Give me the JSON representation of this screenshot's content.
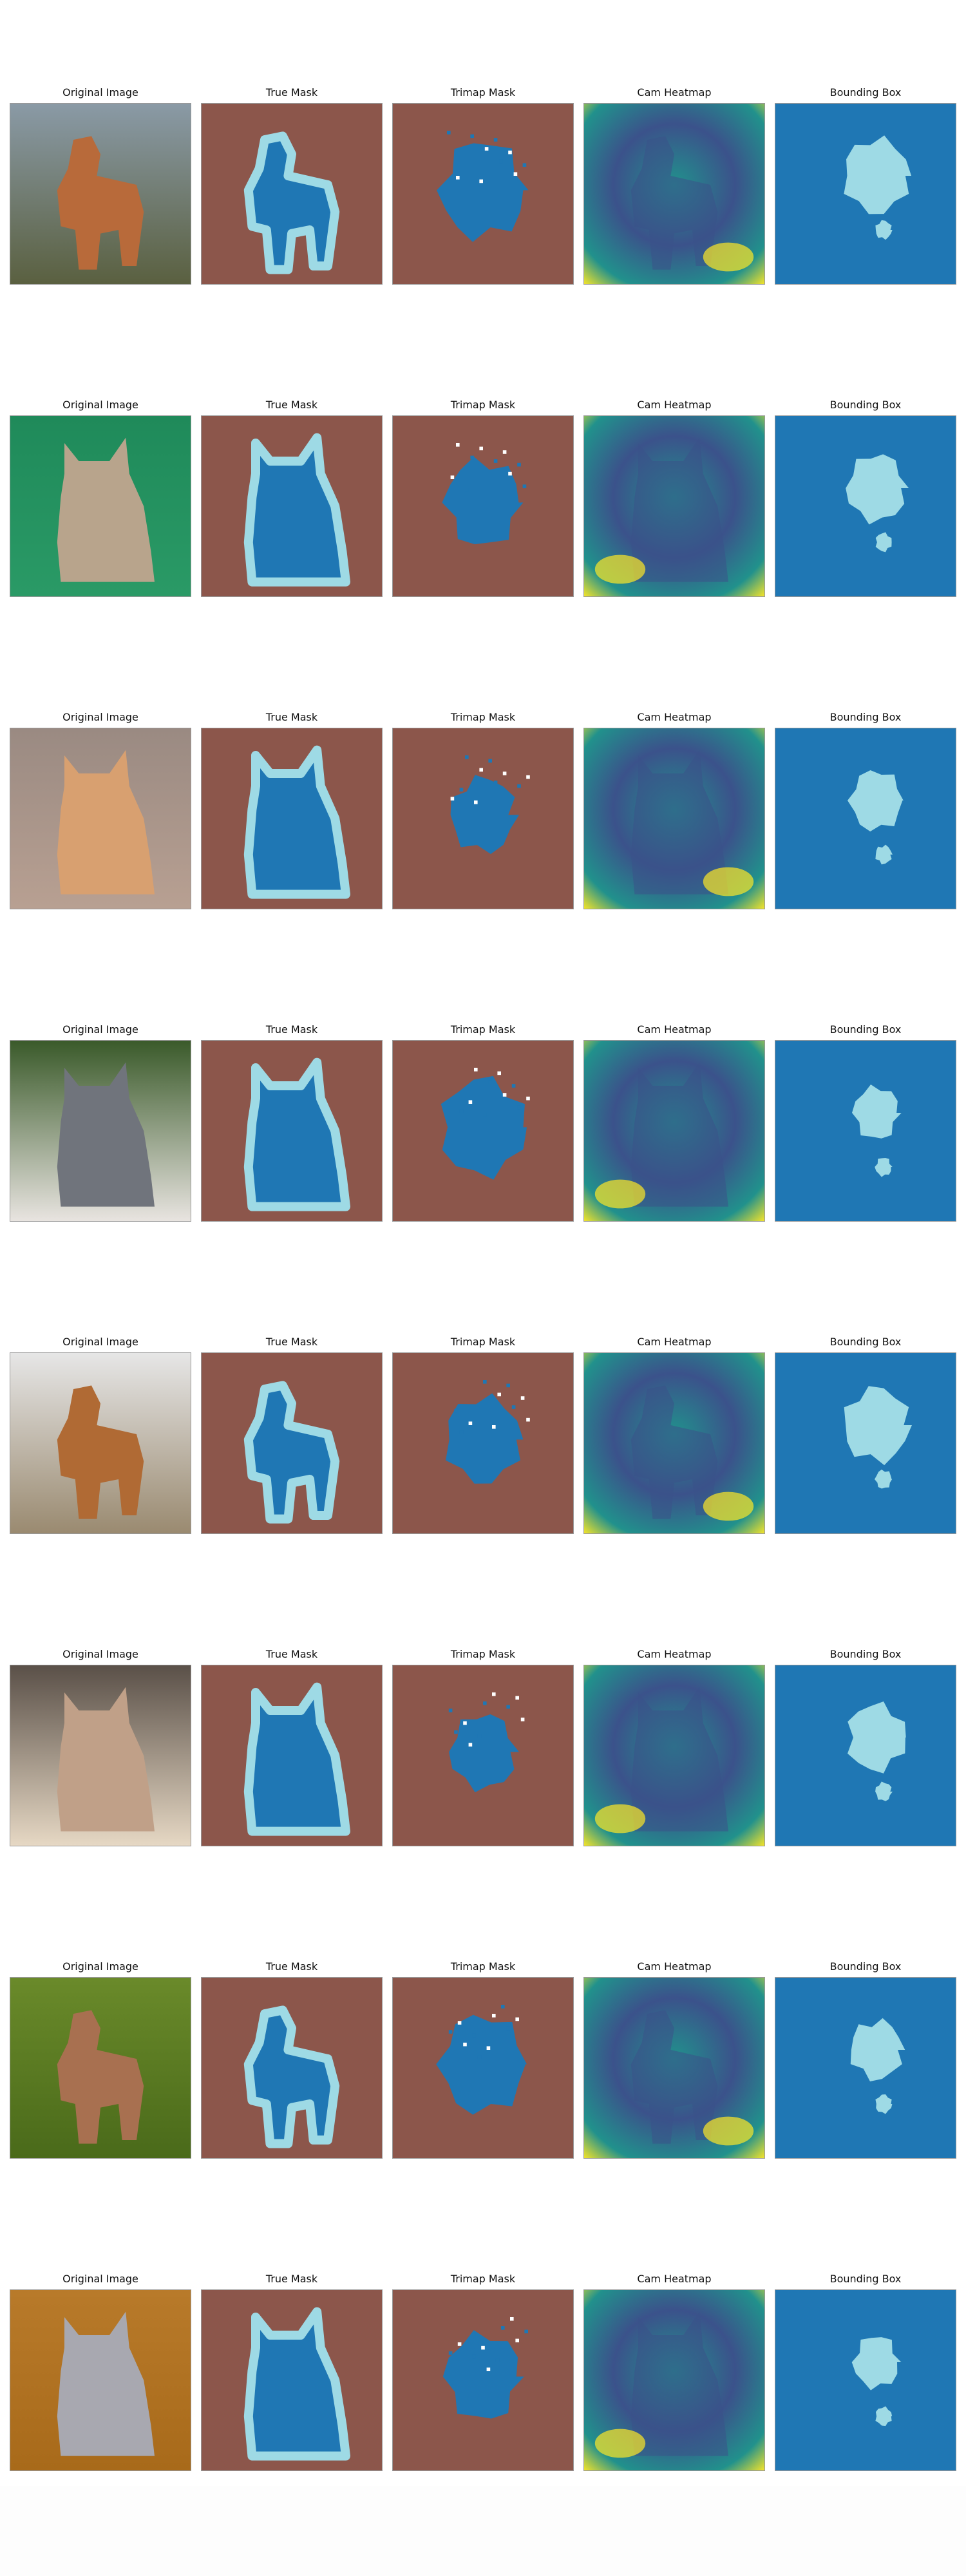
{
  "figure": {
    "panel_titles": [
      "Original Image",
      "True Mask",
      "Trimap Mask",
      "Cam Heatmap",
      "Bounding Box"
    ],
    "rows": [
      {
        "subject": "dog",
        "photo_colors": [
          "#8a9aa6",
          "#5a6040",
          "#b86a3a"
        ]
      },
      {
        "subject": "cat",
        "photo_colors": [
          "#1f8a5a",
          "#2a9a66",
          "#b8a48c"
        ]
      },
      {
        "subject": "cat",
        "photo_colors": [
          "#9a8a82",
          "#b8a092",
          "#d8a070"
        ]
      },
      {
        "subject": "cat",
        "photo_colors": [
          "#3a5a2a",
          "#e8e4e0",
          "#70747c"
        ]
      },
      {
        "subject": "dog",
        "photo_colors": [
          "#e6e6e6",
          "#9a8a70",
          "#b06a34"
        ]
      },
      {
        "subject": "cat",
        "photo_colors": [
          "#5a5048",
          "#e6d8c4",
          "#c0a088"
        ]
      },
      {
        "subject": "dog",
        "photo_colors": [
          "#6a8a2a",
          "#4a6a1a",
          "#a87050"
        ]
      },
      {
        "subject": "cat",
        "photo_colors": [
          "#b87a2a",
          "#a86a1a",
          "#a8a8b0"
        ]
      }
    ],
    "mask_colors": {
      "background": "#8c564b",
      "foreground": "#1f77b4",
      "boundary": "#9edae5",
      "box_background": "#1f77b4",
      "box_foreground": "#9edae5"
    },
    "heatmap_colors": [
      "#440154",
      "#3b528b",
      "#21918c",
      "#5ec962",
      "#fde725"
    ]
  }
}
